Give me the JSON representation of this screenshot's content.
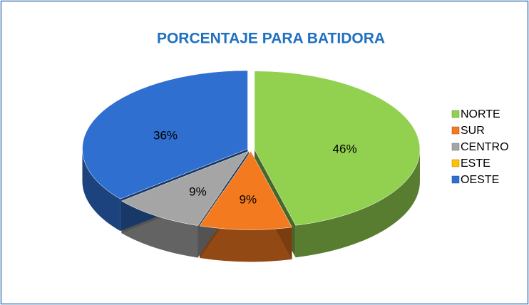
{
  "chart_data": {
    "type": "pie",
    "title": "PORCENTAJE PARA BATIDORA",
    "categories": [
      "NORTE",
      "SUR",
      "CENTRO",
      "ESTE",
      "OESTE"
    ],
    "values": [
      46,
      9,
      9,
      0,
      36
    ],
    "value_labels": [
      "46%",
      "9%",
      "9%",
      null,
      "36%"
    ],
    "colors": [
      "#92d050",
      "#f47a20",
      "#a5a5a5",
      "#ffc000",
      "#2f6fd0"
    ],
    "legend": "right"
  }
}
